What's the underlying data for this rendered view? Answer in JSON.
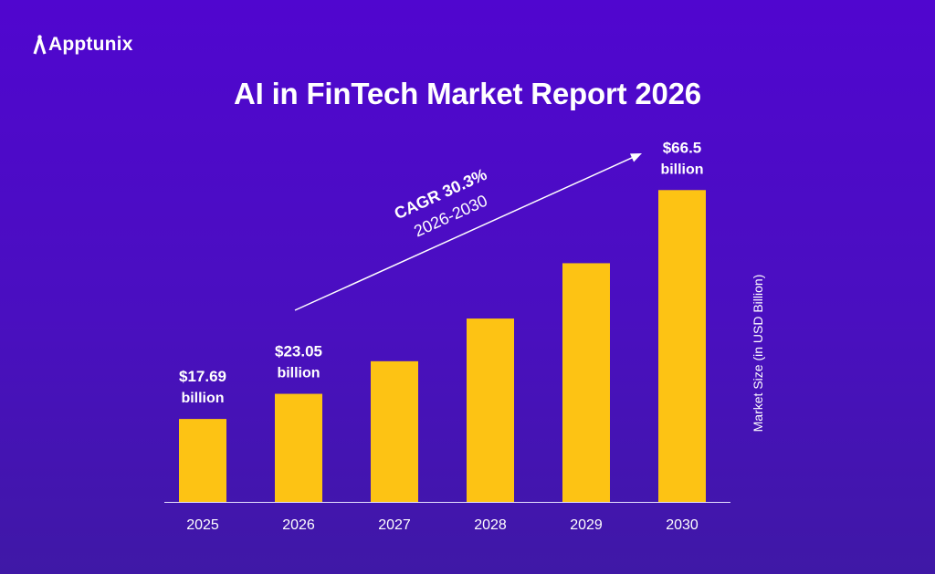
{
  "brand": {
    "name": "Apptunix"
  },
  "chart_data": {
    "type": "bar",
    "title": "AI in FinTech Market Report 2026",
    "categories": [
      "2025",
      "2026",
      "2027",
      "2028",
      "2029",
      "2030"
    ],
    "values": [
      17.69,
      23.05,
      30.0,
      39.1,
      50.9,
      66.5
    ],
    "data_labels": [
      {
        "category": "2025",
        "amount": "$17.69",
        "unit": "billion"
      },
      {
        "category": "2026",
        "amount": "$23.05",
        "unit": "billion"
      },
      {
        "category": "2030",
        "amount": "$66.5",
        "unit": "billion"
      }
    ],
    "ylabel": "Market Size (in USD Billion)",
    "ylim": [
      0,
      72
    ],
    "annotation": {
      "line1": "CAGR 30.3%",
      "line2": "2026-2030"
    },
    "colors": {
      "bar": "#fdc314",
      "axis": "#e6e0ff",
      "text": "#ffffff"
    },
    "grid": false
  }
}
